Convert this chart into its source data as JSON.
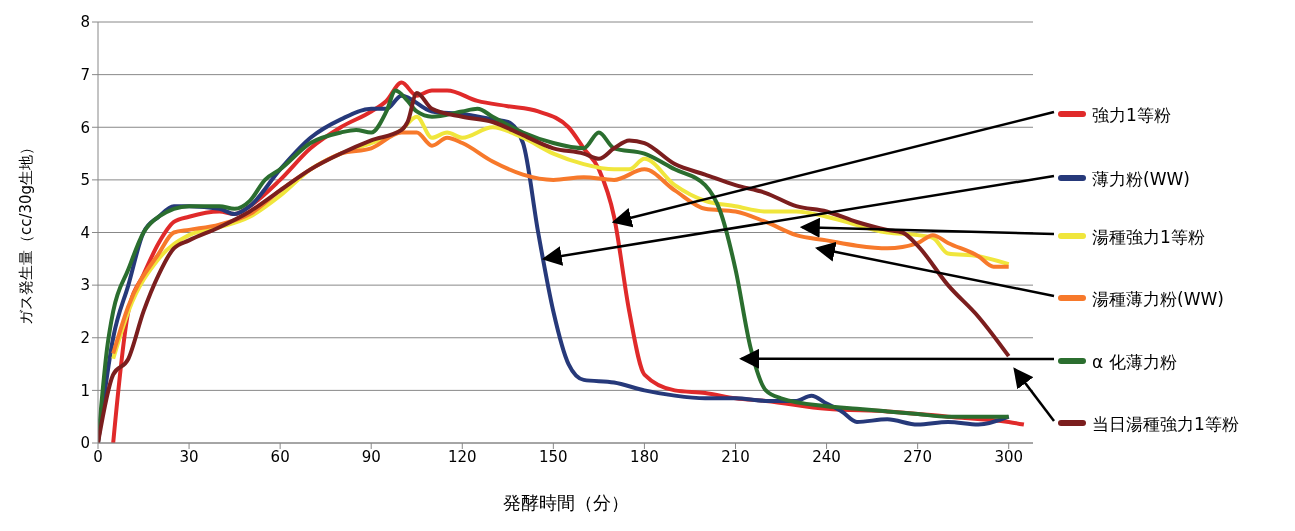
{
  "chart_data": {
    "type": "line",
    "xlabel": "発酵時間（分）",
    "ylabel": "ガス発生量（cc/30g生地）",
    "xlim": [
      0,
      308
    ],
    "xticks": [
      0,
      30,
      60,
      90,
      120,
      150,
      180,
      210,
      240,
      270,
      300
    ],
    "ylim": [
      0,
      8
    ],
    "yticks": [
      0,
      1,
      2,
      3,
      4,
      5,
      6,
      7,
      8
    ],
    "grid": "y",
    "legend": "right",
    "series": [
      {
        "name": "強力1等粉",
        "color": "#e02a2a",
        "x": [
          5,
          10,
          15,
          20,
          25,
          30,
          40,
          45,
          50,
          60,
          70,
          80,
          90,
          95,
          100,
          105,
          110,
          115,
          125,
          135,
          145,
          155,
          160,
          165,
          170,
          175,
          180,
          190,
          200,
          210,
          220,
          240,
          260,
          280,
          300,
          305
        ],
        "values": [
          0,
          2.5,
          3.2,
          3.8,
          4.2,
          4.3,
          4.4,
          4.35,
          4.5,
          5.0,
          5.6,
          6.0,
          6.3,
          6.5,
          6.85,
          6.6,
          6.7,
          6.7,
          6.5,
          6.4,
          6.3,
          6.0,
          5.6,
          5.2,
          4.3,
          2.5,
          1.3,
          1.0,
          0.95,
          0.85,
          0.8,
          0.65,
          0.6,
          0.5,
          0.4,
          0.35
        ]
      },
      {
        "name": "薄力粉(WW)",
        "color": "#26397a",
        "x": [
          0,
          5,
          10,
          15,
          20,
          25,
          30,
          40,
          45,
          50,
          60,
          70,
          80,
          90,
          95,
          100,
          110,
          120,
          130,
          135,
          140,
          145,
          150,
          155,
          160,
          170,
          180,
          190,
          200,
          210,
          220,
          230,
          235,
          240,
          245,
          250,
          260,
          270,
          280,
          290,
          300
        ],
        "values": [
          0,
          2.0,
          3.0,
          4.0,
          4.3,
          4.5,
          4.5,
          4.45,
          4.35,
          4.5,
          5.2,
          5.8,
          6.15,
          6.35,
          6.35,
          6.6,
          6.3,
          6.25,
          6.15,
          6.1,
          5.7,
          4.0,
          2.5,
          1.5,
          1.2,
          1.15,
          1.0,
          0.9,
          0.85,
          0.85,
          0.8,
          0.8,
          0.9,
          0.75,
          0.6,
          0.4,
          0.45,
          0.35,
          0.4,
          0.35,
          0.5
        ]
      },
      {
        "name": "湯種強力1等粉",
        "color": "#f0e63c",
        "x": [
          5,
          10,
          20,
          30,
          40,
          50,
          60,
          70,
          80,
          90,
          100,
          105,
          110,
          115,
          120,
          130,
          140,
          150,
          160,
          170,
          175,
          180,
          190,
          200,
          210,
          220,
          230,
          240,
          260,
          270,
          275,
          280,
          290,
          300
        ],
        "values": [
          1.6,
          2.5,
          3.5,
          3.95,
          4.1,
          4.3,
          4.7,
          5.2,
          5.5,
          5.7,
          5.95,
          6.2,
          5.8,
          5.9,
          5.8,
          6.0,
          5.8,
          5.5,
          5.3,
          5.2,
          5.2,
          5.4,
          4.9,
          4.6,
          4.5,
          4.4,
          4.4,
          4.3,
          4.0,
          3.95,
          3.9,
          3.6,
          3.55,
          3.4
        ]
      },
      {
        "name": "湯種薄力粉(WW)",
        "color": "#f7792b",
        "x": [
          5,
          10,
          20,
          25,
          30,
          40,
          50,
          60,
          70,
          80,
          90,
          100,
          105,
          110,
          115,
          120,
          130,
          140,
          150,
          160,
          170,
          180,
          190,
          200,
          210,
          220,
          230,
          240,
          250,
          260,
          270,
          275,
          280,
          290,
          295,
          300
        ],
        "values": [
          1.7,
          2.6,
          3.6,
          4.0,
          4.05,
          4.15,
          4.35,
          4.8,
          5.2,
          5.5,
          5.6,
          5.9,
          5.9,
          5.65,
          5.8,
          5.7,
          5.35,
          5.1,
          5.0,
          5.05,
          5.0,
          5.2,
          4.8,
          4.45,
          4.4,
          4.2,
          3.95,
          3.85,
          3.75,
          3.7,
          3.8,
          3.95,
          3.8,
          3.55,
          3.35,
          3.35
        ]
      },
      {
        "name": "α 化薄力粉",
        "color": "#2b6e2f",
        "x": [
          0,
          3,
          5,
          10,
          15,
          20,
          30,
          40,
          45,
          50,
          55,
          60,
          70,
          80,
          85,
          90,
          95,
          98,
          102,
          105,
          110,
          120,
          125,
          130,
          140,
          150,
          160,
          165,
          170,
          180,
          190,
          200,
          205,
          210,
          215,
          220,
          225,
          240,
          250,
          260,
          270,
          280,
          300
        ],
        "values": [
          0,
          1.8,
          2.5,
          3.3,
          4.0,
          4.3,
          4.5,
          4.5,
          4.45,
          4.6,
          5.0,
          5.2,
          5.7,
          5.9,
          5.95,
          5.9,
          6.3,
          6.7,
          6.5,
          6.3,
          6.2,
          6.3,
          6.35,
          6.2,
          5.9,
          5.7,
          5.6,
          5.9,
          5.6,
          5.5,
          5.2,
          4.9,
          4.4,
          3.3,
          1.8,
          1.0,
          0.85,
          0.7,
          0.65,
          0.6,
          0.55,
          0.5,
          0.5
        ]
      },
      {
        "name": "当日湯種強力1等粉",
        "color": "#7b1e1e",
        "x": [
          0,
          5,
          10,
          15,
          20,
          25,
          30,
          40,
          50,
          60,
          70,
          80,
          90,
          100,
          102,
          105,
          110,
          120,
          130,
          140,
          150,
          160,
          165,
          170,
          175,
          180,
          190,
          200,
          210,
          220,
          230,
          240,
          250,
          260,
          265,
          270,
          280,
          290,
          300
        ],
        "values": [
          0,
          1.3,
          1.6,
          2.5,
          3.2,
          3.7,
          3.85,
          4.1,
          4.4,
          4.8,
          5.2,
          5.5,
          5.75,
          5.95,
          6.1,
          6.65,
          6.35,
          6.2,
          6.1,
          5.85,
          5.6,
          5.5,
          5.4,
          5.6,
          5.75,
          5.7,
          5.3,
          5.1,
          4.9,
          4.75,
          4.5,
          4.4,
          4.2,
          4.05,
          4.0,
          3.75,
          3.0,
          2.4,
          1.65
        ]
      }
    ]
  }
}
